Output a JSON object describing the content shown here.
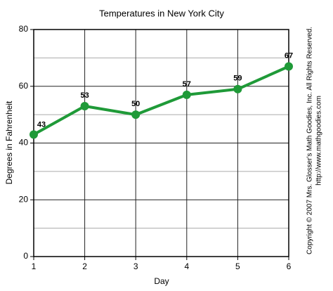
{
  "chart_data": {
    "type": "line",
    "title": "Temperatures in New York City",
    "x_label": "Day",
    "y_label": "Degrees in Fahrenheit",
    "x": [
      1,
      2,
      3,
      4,
      5,
      6
    ],
    "values": [
      43,
      53,
      50,
      57,
      59,
      67
    ],
    "color": "#1f9a38",
    "xlim": [
      1,
      6
    ],
    "xticks": [
      1,
      2,
      3,
      4,
      5,
      6
    ],
    "ylim": [
      0,
      80
    ],
    "yticks": [
      0,
      20,
      40,
      60,
      80
    ],
    "grid": true,
    "copyright": "Copyright © 2007 Mrs. Glosser's Math Goodies, Inc. All Rights Reserved.",
    "url": "http://www.mathgoodies.com"
  }
}
